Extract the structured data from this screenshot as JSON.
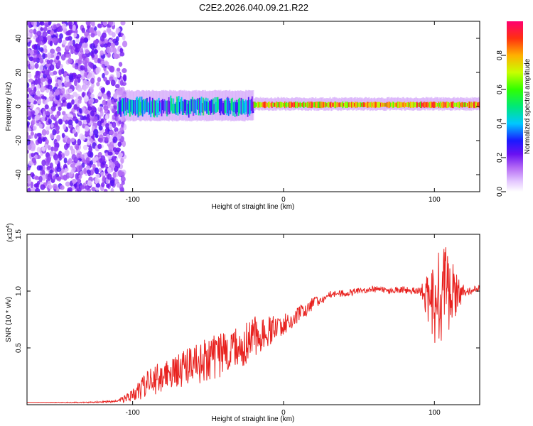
{
  "title": "C2E2.2026.040.09.21.R22",
  "chart_data": [
    {
      "type": "heatmap",
      "xlabel": "Height of straight line (km)",
      "ylabel": "Frequency (Hz)",
      "xlim": [
        -170,
        130
      ],
      "ylim": [
        -50,
        50
      ],
      "xticks": [
        -100,
        0,
        100
      ],
      "yticks": [
        -40,
        -20,
        0,
        20,
        40
      ],
      "colorbar": {
        "label": "Normalized spectral amplitude",
        "range": [
          0,
          1
        ],
        "ticks": [
          "0.0",
          "0.2",
          "0.4",
          "0.6",
          "0.8"
        ],
        "tick_values": [
          0,
          0.2,
          0.4,
          0.6,
          0.8
        ]
      },
      "regions": [
        {
          "name": "scattered noise",
          "x": [
            -170,
            -105
          ],
          "freq": [
            -50,
            50
          ],
          "amplitude": 0.2
        },
        {
          "name": "broad signal band",
          "x": [
            -110,
            -20
          ],
          "freq_center": 0,
          "halfwidth_core": 4,
          "amplitude": 0.45
        },
        {
          "name": "narrow signal line",
          "x": [
            -20,
            130
          ],
          "freq_center": 1,
          "halfwidth_core": 1.5,
          "amplitude": 0.85
        }
      ]
    },
    {
      "type": "line",
      "xlabel": "Height of straight line (km)",
      "ylabel": "SNR (10 * v/v)",
      "ymult": "(x10",
      "ymult_exp": "4",
      "xlim": [
        -170,
        130
      ],
      "ylim": [
        0,
        1.5
      ],
      "xticks": [
        -100,
        0,
        100
      ],
      "yticks": [
        0.5,
        1.0,
        1.5
      ],
      "ytick_labels": [
        "0.5",
        "1.0",
        "1.5"
      ],
      "series": [
        {
          "name": "SNR",
          "color": "#e8221f",
          "x": [
            -170,
            -130,
            -110,
            -100,
            -90,
            -80,
            -70,
            -60,
            -50,
            -40,
            -30,
            -20,
            -10,
            0,
            10,
            20,
            30,
            40,
            50,
            60,
            70,
            80,
            90,
            100,
            105,
            110,
            120,
            130
          ],
          "y": [
            0.02,
            0.02,
            0.03,
            0.08,
            0.18,
            0.26,
            0.3,
            0.35,
            0.4,
            0.45,
            0.5,
            0.6,
            0.65,
            0.7,
            0.8,
            0.9,
            0.96,
            0.98,
            1.0,
            1.02,
            1.0,
            1.01,
            1.0,
            0.9,
            0.95,
            0.95,
            1.0,
            1.02
          ],
          "noise": [
            0,
            0.005,
            0.01,
            0.06,
            0.12,
            0.14,
            0.15,
            0.18,
            0.2,
            0.2,
            0.2,
            0.18,
            0.14,
            0.1,
            0.08,
            0.06,
            0.04,
            0.03,
            0.03,
            0.03,
            0.03,
            0.03,
            0.03,
            0.35,
            0.55,
            0.35,
            0.04,
            0.04
          ]
        }
      ]
    }
  ],
  "colors": {
    "line": "#e8221f",
    "axis": "#000000"
  }
}
